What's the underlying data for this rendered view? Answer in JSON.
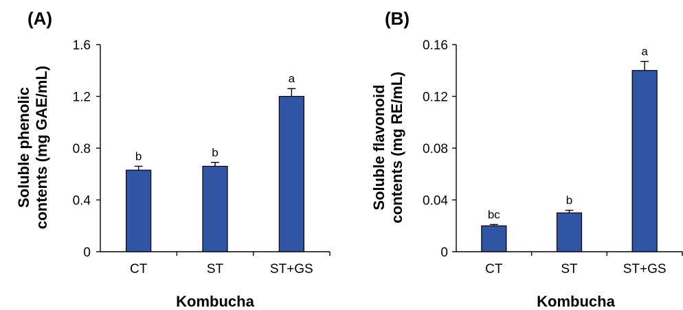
{
  "chart_data": [
    {
      "type": "bar",
      "panel_label": "(A)",
      "categories": [
        "CT",
        "ST",
        "ST+GS"
      ],
      "values": [
        0.63,
        0.66,
        1.2
      ],
      "errors": [
        0.03,
        0.03,
        0.06
      ],
      "significance": [
        "b",
        "b",
        "a"
      ],
      "xlabel": "Kombucha",
      "ylabel_lines": [
        "Soluble phenolic",
        "contents (mg GAE/mL)"
      ],
      "ylim": [
        0,
        1.6
      ],
      "yticks": [
        0,
        0.4,
        0.8,
        1.2,
        1.6
      ],
      "ytick_labels": [
        "0",
        "0.4",
        "0.8",
        "1.2",
        "1.6"
      ],
      "bar_color": "#2F55A4",
      "grid": false
    },
    {
      "type": "bar",
      "panel_label": "(B)",
      "categories": [
        "CT",
        "ST",
        "ST+GS"
      ],
      "values": [
        0.02,
        0.03,
        0.14
      ],
      "errors": [
        0.001,
        0.002,
        0.007
      ],
      "significance": [
        "bc",
        "b",
        "a"
      ],
      "xlabel": "Kombucha",
      "ylabel_lines": [
        "Soluble flavonoid",
        "contents (mg RE/mL)"
      ],
      "ylim": [
        0,
        0.16
      ],
      "yticks": [
        0,
        0.04,
        0.08,
        0.12,
        0.16
      ],
      "ytick_labels": [
        "0",
        "0.04",
        "0.08",
        "0.12",
        "0.16"
      ],
      "bar_color": "#2F55A4",
      "grid": false
    }
  ]
}
